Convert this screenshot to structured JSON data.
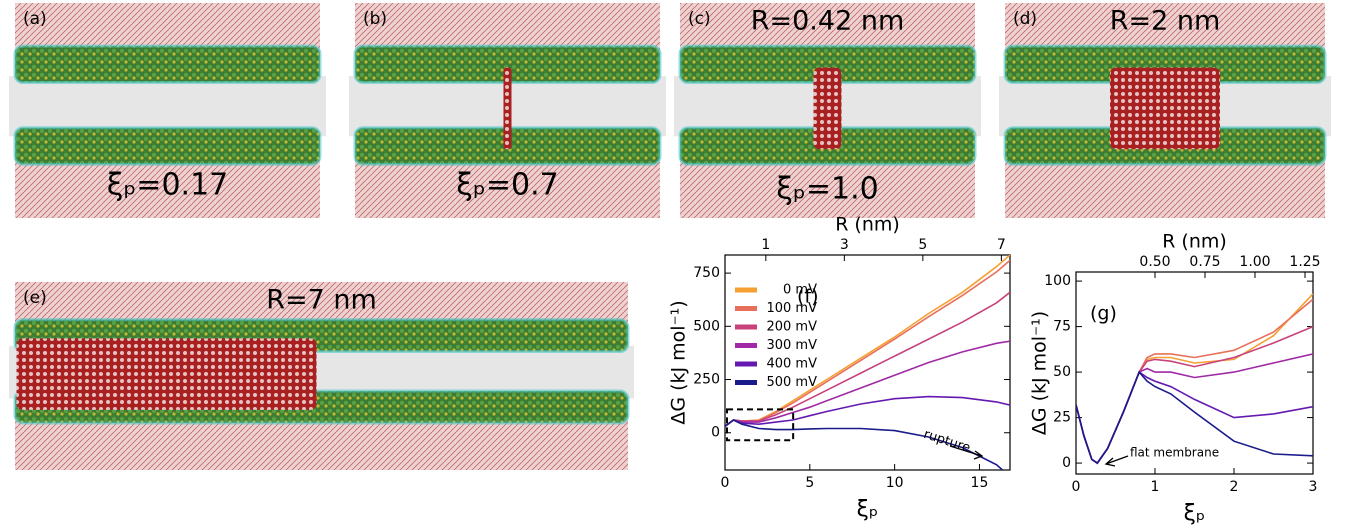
{
  "panels": [
    {
      "label": "(a)",
      "caption": "ξₚ=0.17"
    },
    {
      "label": "(b)",
      "caption": "ξₚ=0.7"
    },
    {
      "label": "(c)",
      "title": "R=0.42 nm",
      "caption": "ξₚ=1.0"
    },
    {
      "label": "(d)",
      "title": "R=2 nm"
    },
    {
      "label": "(e)",
      "title": "R=7 nm"
    }
  ],
  "chart_data": [
    {
      "type": "line",
      "panel_label": "(f)",
      "xlabel": "ξₚ",
      "ylabel": "ΔG (kJ mol⁻¹)",
      "x2label": "R (nm)",
      "xlim": [
        0,
        16.8
      ],
      "xticks": [
        0,
        5,
        10,
        15
      ],
      "ylim": [
        -175,
        835
      ],
      "yticks": [
        0,
        250,
        500,
        750
      ],
      "x2lim": [
        -0.04,
        7.22
      ],
      "x2ticks": [
        1,
        3,
        5,
        7
      ],
      "annotation": "rupture",
      "zoom_box": {
        "xlim": [
          0,
          3.9
        ],
        "ylim": [
          -35,
          110
        ]
      },
      "x": [
        0,
        0.5,
        1,
        2,
        3,
        4,
        5,
        6,
        8,
        10,
        12,
        14,
        16,
        16.8
      ],
      "series": [
        {
          "name": "0 mV",
          "color": "#f5a033",
          "values": [
            30,
            60,
            55,
            60,
            100,
            150,
            200,
            250,
            350,
            450,
            560,
            660,
            780,
            835
          ]
        },
        {
          "name": "100 mV",
          "color": "#e8705a",
          "values": [
            30,
            60,
            55,
            58,
            95,
            140,
            190,
            240,
            340,
            440,
            545,
            645,
            755,
            810
          ]
        },
        {
          "name": "200 mV",
          "color": "#c8427c",
          "values": [
            30,
            60,
            55,
            55,
            85,
            120,
            160,
            200,
            280,
            360,
            440,
            520,
            610,
            660
          ]
        },
        {
          "name": "300 mV",
          "color": "#a02aa5",
          "values": [
            30,
            60,
            50,
            50,
            70,
            95,
            120,
            150,
            210,
            270,
            330,
            380,
            420,
            430
          ]
        },
        {
          "name": "400 mV",
          "color": "#6419b0",
          "values": [
            30,
            60,
            45,
            40,
            50,
            60,
            80,
            100,
            135,
            160,
            170,
            165,
            145,
            130
          ]
        },
        {
          "name": "500 mV",
          "color": "#1b1a8a",
          "values": [
            30,
            60,
            40,
            20,
            15,
            15,
            18,
            20,
            20,
            10,
            -20,
            -70,
            -150,
            -205
          ]
        }
      ]
    },
    {
      "type": "line",
      "panel_label": "(g)",
      "xlabel": "ξₚ",
      "ylabel": "ΔG (kJ mol⁻¹)",
      "x2label": "R (nm)",
      "xlim": [
        0,
        3
      ],
      "xticks": [
        0,
        1,
        2,
        3
      ],
      "ylim": [
        -6,
        105
      ],
      "yticks": [
        0,
        25,
        50,
        75,
        100
      ],
      "x2lim": [
        0.105,
        1.29
      ],
      "x2ticks": [
        {
          "value": 0.5,
          "label": "0.50"
        },
        0.75,
        {
          "value": 1.0,
          "label": "1.00"
        },
        1.25
      ],
      "annotation": "flat membrane",
      "x": [
        0,
        0.1,
        0.2,
        0.27,
        0.4,
        0.6,
        0.8,
        0.9,
        1.0,
        1.2,
        1.5,
        2.0,
        2.5,
        3.0
      ],
      "series": [
        {
          "name": "0 mV",
          "color": "#f5a033",
          "values": [
            32,
            15,
            2,
            0,
            8,
            28,
            50,
            57,
            58,
            58,
            55,
            57,
            70,
            93
          ]
        },
        {
          "name": "100 mV",
          "color": "#e8705a",
          "values": [
            32,
            15,
            2,
            0,
            8,
            28,
            50,
            58,
            60,
            60,
            58,
            62,
            72,
            90
          ]
        },
        {
          "name": "200 mV",
          "color": "#c8427c",
          "values": [
            32,
            15,
            2,
            0,
            8,
            28,
            50,
            56,
            57,
            56,
            53,
            58,
            66,
            75
          ]
        },
        {
          "name": "300 mV",
          "color": "#a02aa5",
          "values": [
            32,
            15,
            2,
            0,
            8,
            28,
            50,
            52,
            50,
            50,
            47,
            50,
            55,
            60
          ]
        },
        {
          "name": "400 mV",
          "color": "#6419b0",
          "values": [
            32,
            15,
            2,
            0,
            8,
            28,
            50,
            47,
            45,
            42,
            35,
            25,
            27,
            31
          ]
        },
        {
          "name": "500 mV",
          "color": "#1b1a8a",
          "values": [
            32,
            15,
            2,
            0,
            8,
            28,
            50,
            45,
            42,
            38,
            28,
            12,
            5,
            4
          ]
        }
      ]
    }
  ]
}
